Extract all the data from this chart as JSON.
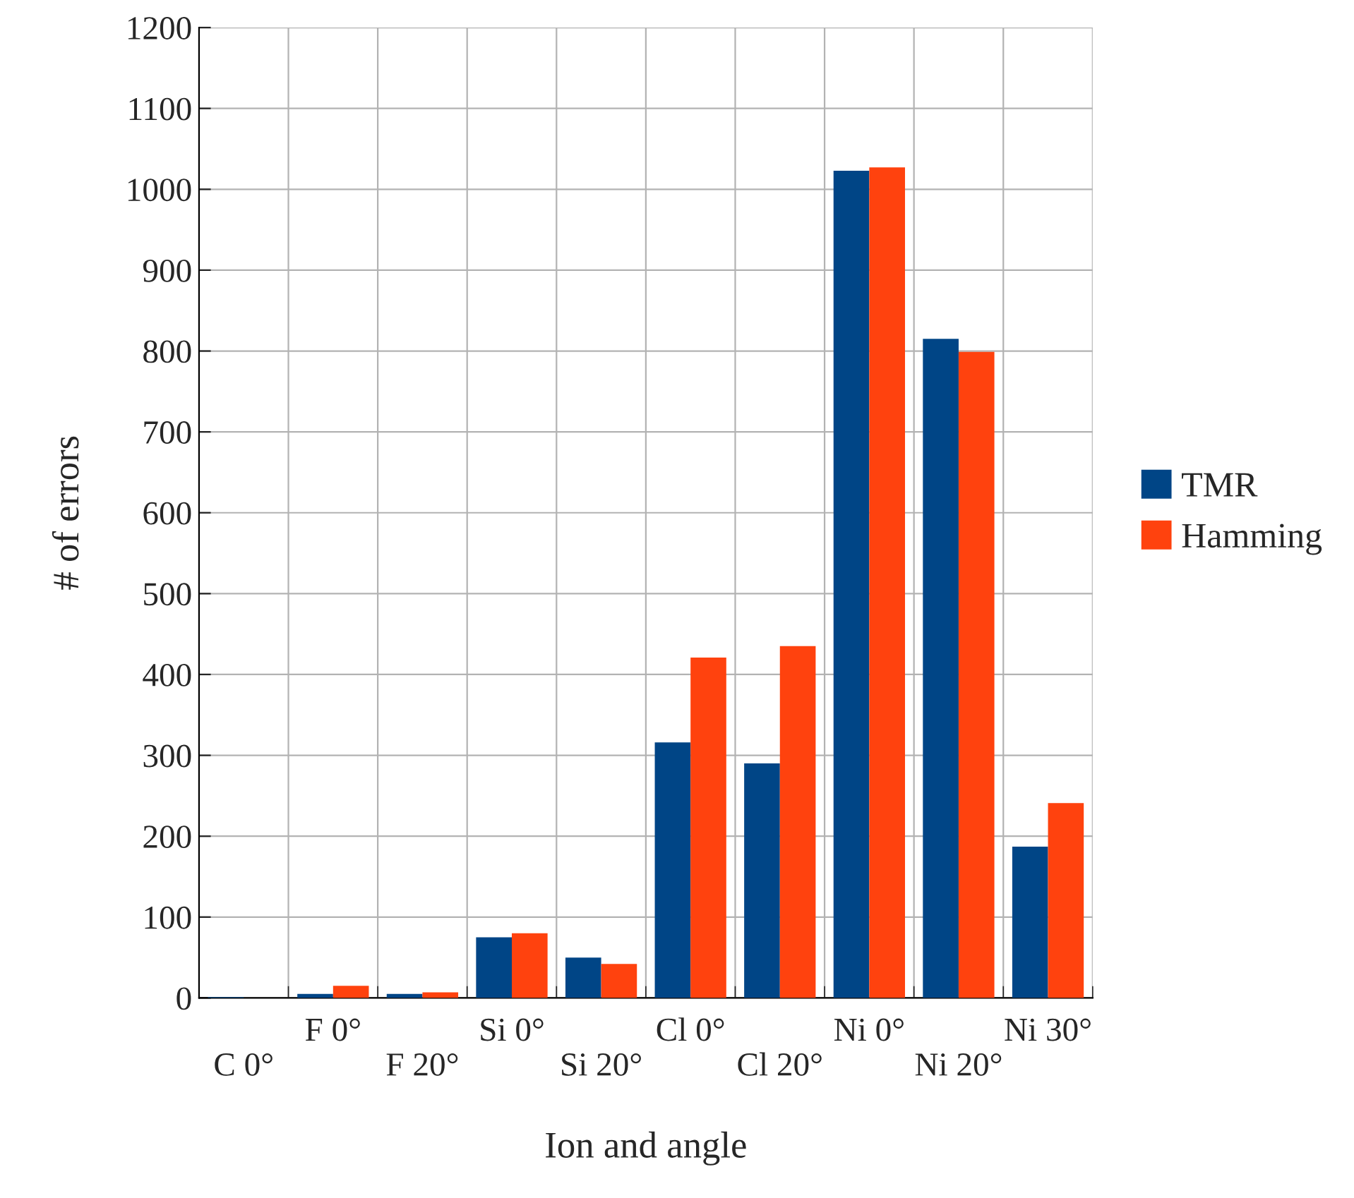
{
  "chart_data": {
    "type": "bar",
    "xlabel": "Ion and angle",
    "ylabel": "# of errors",
    "categories": [
      "C 0°",
      "F 0°",
      "F 20°",
      "Si 0°",
      "Si 20°",
      "Cl 0°",
      "Cl 20°",
      "Ni 0°",
      "Ni 20°",
      "Ni 30°"
    ],
    "series": [
      {
        "name": "TMR",
        "color": "#004586",
        "values": [
          1,
          5,
          5,
          75,
          50,
          316,
          290,
          1023,
          815,
          187
        ]
      },
      {
        "name": "Hamming",
        "color": "#ff420e",
        "values": [
          null,
          15,
          7,
          80,
          42,
          421,
          435,
          1027,
          799,
          241
        ]
      }
    ],
    "ylim": [
      0,
      1200
    ],
    "yticks": [
      0,
      100,
      200,
      300,
      400,
      500,
      600,
      700,
      800,
      900,
      1000,
      1100,
      1200
    ],
    "grid": true,
    "legend": "right"
  }
}
